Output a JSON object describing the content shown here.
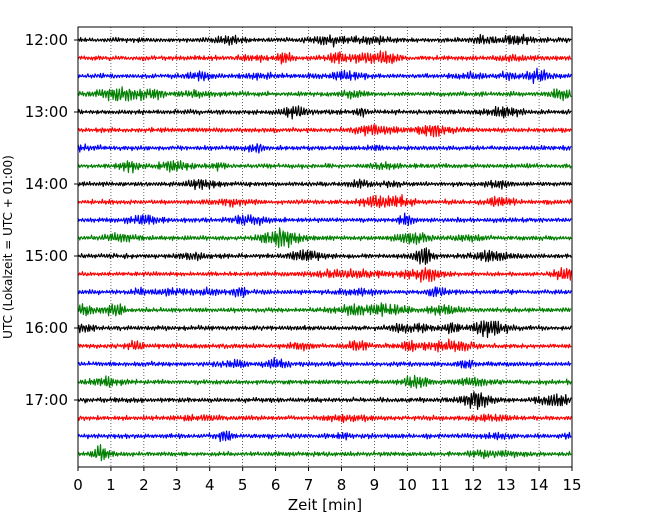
{
  "chart_data": {
    "type": "line",
    "subtype": "helicorder",
    "title": "",
    "xlabel": "Zeit  [min]",
    "ylabel": "UTC (Lokalzeit = UTC + 01:00)",
    "xlim": [
      0,
      15
    ],
    "x_ticks": [
      0,
      1,
      2,
      3,
      4,
      5,
      6,
      7,
      8,
      9,
      10,
      11,
      12,
      13,
      14,
      15
    ],
    "x_tick_labels": [
      "0",
      "1",
      "2",
      "3",
      "4",
      "5",
      "6",
      "7",
      "8",
      "9",
      "10",
      "11",
      "12",
      "13",
      "14",
      "15"
    ],
    "y_tick_labels": [
      "12:00",
      "13:00",
      "14:00",
      "15:00",
      "16:00",
      "17:00"
    ],
    "y_tick_rows": [
      0,
      4,
      8,
      12,
      16,
      20
    ],
    "row_count": 24,
    "row_interval_minutes": 15,
    "first_row_time": "12:00",
    "last_row_time": "17:45",
    "row_color_cycle": [
      "#000000",
      "#ff0000",
      "#0000ff",
      "#007f00"
    ],
    "grid": {
      "vertical_dotted": true,
      "horizontal": false
    },
    "legend": "none",
    "frame_color": "#000000"
  }
}
